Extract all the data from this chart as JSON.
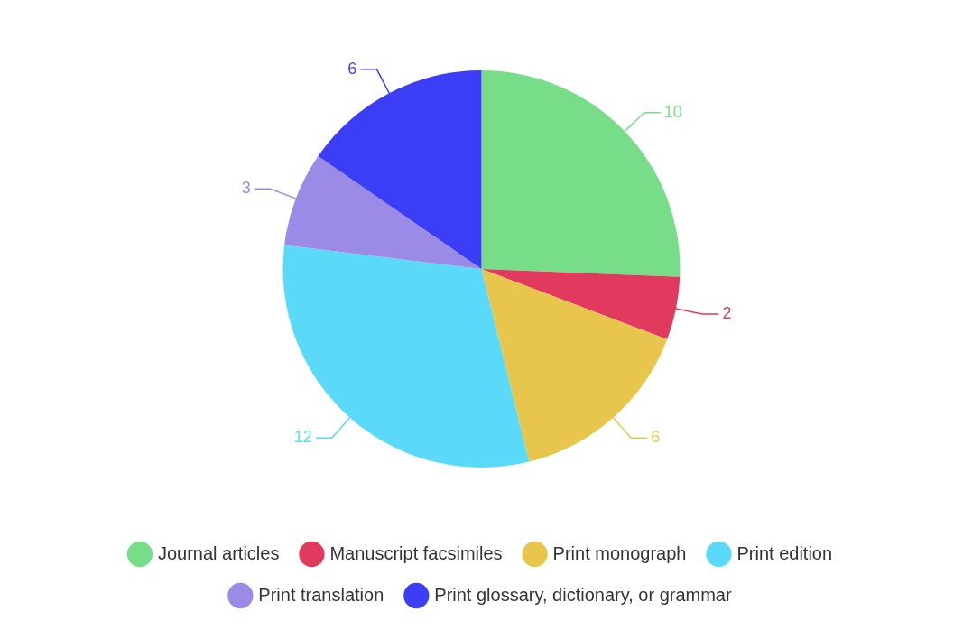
{
  "chart_data": {
    "type": "pie",
    "categories": [
      "Journal articles",
      "Manuscript facsimiles",
      "Print monograph",
      "Print edition",
      "Print translation",
      "Print glossary, dictionary, or grammar"
    ],
    "values": [
      10,
      2,
      6,
      12,
      3,
      6
    ],
    "colors": [
      "#77dd88",
      "#e23a5e",
      "#e8c54d",
      "#5bd9f8",
      "#9b8ae6",
      "#3b3ef5"
    ],
    "data_labels": true,
    "legend": "bottom"
  }
}
